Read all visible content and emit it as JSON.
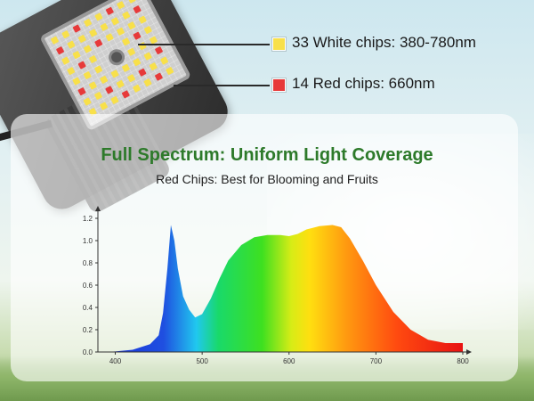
{
  "callouts": {
    "white": {
      "label": "33 White chips: 380-780nm",
      "color": "#f8e04a"
    },
    "red": {
      "label": "14 Red chips: 660nm",
      "color": "#e73a3a"
    }
  },
  "heading": {
    "title": "Full Spectrum: Uniform Light Coverage",
    "subtitle": "Red Chips: Best for Blooming and Fruits"
  },
  "chart_data": {
    "type": "area",
    "title": "",
    "xlabel": "",
    "ylabel": "",
    "xlim": [
      380,
      800
    ],
    "ylim": [
      0,
      1.2
    ],
    "x_ticks": [
      "400",
      "500",
      "600",
      "700",
      "800"
    ],
    "y_ticks": [
      "0.0",
      "0.2",
      "0.4",
      "0.6",
      "0.8",
      "1.0",
      "1.2"
    ],
    "series": [
      {
        "x": [
          380,
          400,
          420,
          440,
          450,
          455,
          460,
          464,
          468,
          472,
          478,
          485,
          492,
          500,
          510,
          520,
          530,
          545,
          560,
          575,
          590,
          600,
          610,
          620,
          635,
          650,
          660,
          670,
          685,
          700,
          720,
          740,
          760,
          780,
          800
        ],
        "values": [
          0.0,
          0.005,
          0.02,
          0.07,
          0.15,
          0.35,
          0.75,
          1.14,
          1.0,
          0.75,
          0.5,
          0.38,
          0.31,
          0.34,
          0.48,
          0.66,
          0.82,
          0.96,
          1.03,
          1.05,
          1.05,
          1.04,
          1.06,
          1.1,
          1.13,
          1.14,
          1.12,
          1.02,
          0.82,
          0.6,
          0.36,
          0.2,
          0.11,
          0.08,
          0.08
        ]
      }
    ],
    "grid": false,
    "gradient": "visible spectrum (blue → cyan → green → yellow → orange → red)"
  }
}
